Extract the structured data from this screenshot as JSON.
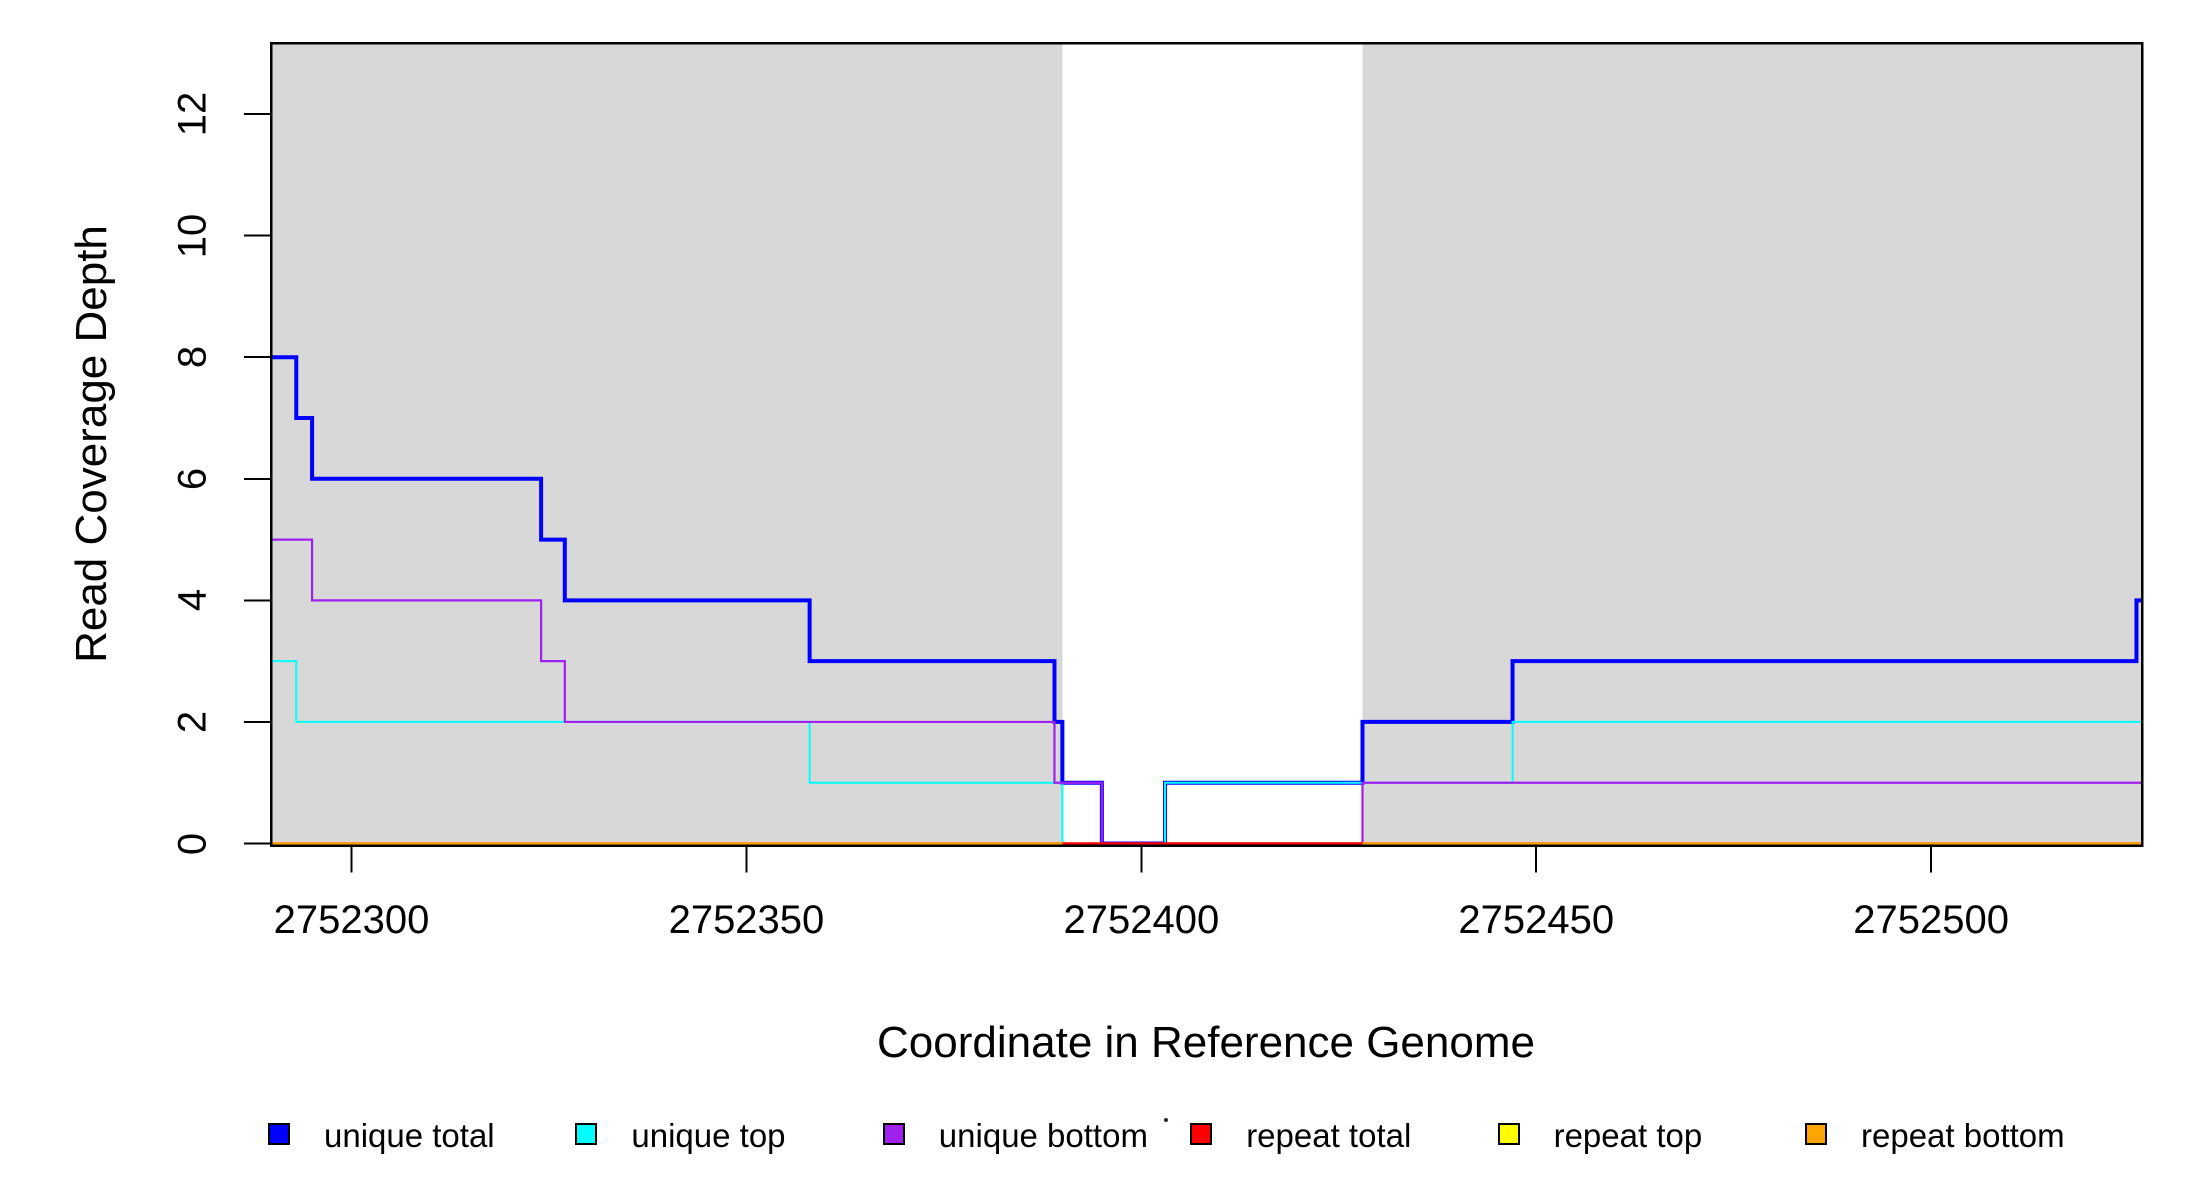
{
  "x_axis": {
    "title": "Coordinate in Reference Genome",
    "tick_values": [
      2752300,
      2752350,
      2752400,
      2752450,
      2752500
    ],
    "tick_labels": [
      "2752300",
      "2752350",
      "2752400",
      "2752450",
      "2752500"
    ],
    "range": [
      2752289.8,
      2752526.7
    ]
  },
  "y_axis": {
    "title": "Read Coverage Depth",
    "tick_values": [
      0,
      2,
      4,
      6,
      8,
      10,
      12
    ],
    "tick_labels": [
      "0",
      "2",
      "4",
      "6",
      "8",
      "10",
      "12"
    ],
    "range": [
      0,
      13.17
    ]
  },
  "chart_data": {
    "type": "line",
    "subtype": "step-coverage",
    "title": "",
    "xlabel": "Coordinate in Reference Genome",
    "ylabel": "Read Coverage Depth",
    "xlim": [
      2752289.8,
      2752526.7
    ],
    "ylim": [
      0,
      13.17
    ],
    "grid": "off",
    "shaded_regions": [
      {
        "name": "unique-coverage-left",
        "from": 2752289.8,
        "to": 2752390,
        "color": "#d8d8d8"
      },
      {
        "name": "unique-coverage-right",
        "from": 2752428,
        "to": 2752526.7,
        "color": "#d8d8d8"
      }
    ],
    "series": [
      {
        "name": "unique total",
        "color": "#0000ff",
        "width": 4,
        "steps": [
          [
            2752289.8,
            8
          ],
          [
            2752293,
            7
          ],
          [
            2752295,
            6
          ],
          [
            2752324,
            5
          ],
          [
            2752327,
            4
          ],
          [
            2752358,
            3
          ],
          [
            2752389,
            2
          ],
          [
            2752390,
            1
          ],
          [
            2752395,
            0
          ],
          [
            2752403,
            1
          ],
          [
            2752428,
            2
          ],
          [
            2752447,
            3
          ],
          [
            2752526,
            4
          ]
        ],
        "end": 2752526.7
      },
      {
        "name": "unique top",
        "color": "#00ffff",
        "width": 2,
        "steps": [
          [
            2752289.8,
            3
          ],
          [
            2752293,
            2
          ],
          [
            2752358,
            1
          ],
          [
            2752390,
            0
          ],
          [
            2752403,
            1
          ],
          [
            2752447,
            2
          ]
        ],
        "end": 2752526.7
      },
      {
        "name": "unique bottom",
        "color": "#a020f0",
        "width": 2.2,
        "steps": [
          [
            2752289.8,
            5
          ],
          [
            2752295,
            4
          ],
          [
            2752324,
            3
          ],
          [
            2752327,
            2
          ],
          [
            2752389,
            1
          ],
          [
            2752395,
            0
          ],
          [
            2752428,
            1
          ]
        ],
        "end": 2752526.7
      },
      {
        "name": "repeat total",
        "color": "#ff0000",
        "width": 2.5,
        "segments": [
          {
            "from": 2752289.8,
            "to": 2752526.7,
            "depth": 0
          }
        ],
        "end": 2752526.7
      },
      {
        "name": "repeat top",
        "color": "#ffff00",
        "width": 2,
        "segments": [
          {
            "from": 2752289.8,
            "to": 2752390,
            "depth": 0
          },
          {
            "from": 2752428,
            "to": 2752526.7,
            "depth": 0
          }
        ],
        "end": 2752526.7
      },
      {
        "name": "repeat bottom",
        "color": "#ffa500",
        "width": 2.5,
        "segments": [
          {
            "from": 2752289.8,
            "to": 2752390,
            "depth": 0
          },
          {
            "from": 2752428,
            "to": 2752526.7,
            "depth": 0
          }
        ],
        "end": 2752526.7
      }
    ],
    "legend_position": "bottom-horizontal"
  },
  "legend": {
    "items": [
      {
        "label": "unique total",
        "color": "#0000ff"
      },
      {
        "label": "unique top",
        "color": "#00ffff"
      },
      {
        "label": "unique bottom",
        "color": "#a020f0"
      },
      {
        "label": "repeat total",
        "color": "#ff0000"
      },
      {
        "label": "repeat top",
        "color": "#ffff00"
      },
      {
        "label": "repeat bottom",
        "color": "#ffa500"
      }
    ]
  }
}
